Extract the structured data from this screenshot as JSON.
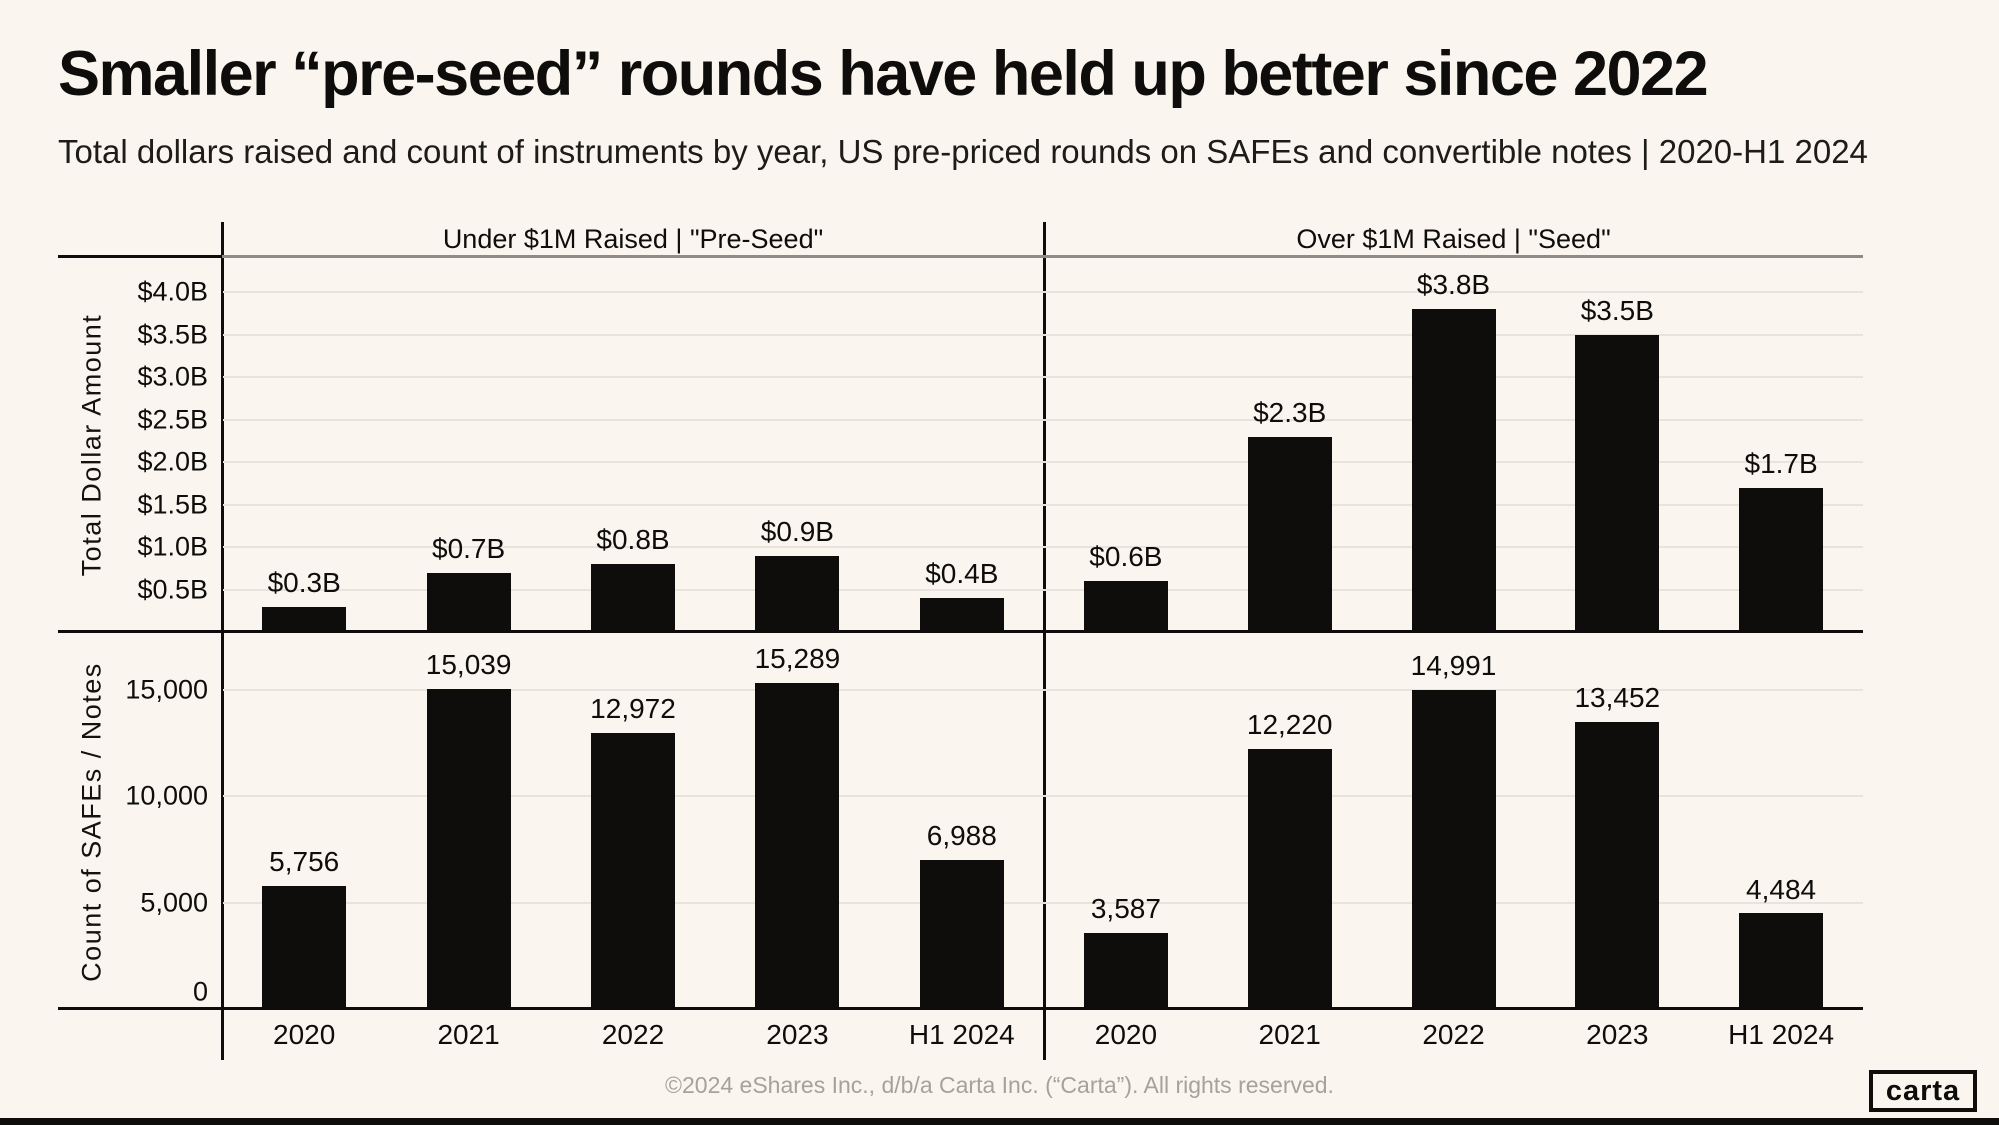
{
  "page": {
    "title": "Smaller “pre-seed” rounds have held up better since 2022",
    "subtitle": "Total dollars raised and count of instruments by year, US pre-priced rounds on SAFEs and convertible notes | 2020-H1 2024",
    "footer": "©2024 eShares Inc., d/b/a Carta Inc. (“Carta”). All rights reserved.",
    "logo_text": "carta"
  },
  "colors": {
    "background": "#faf6ef",
    "ink": "#0e0d0b",
    "bar": "#0e0d0b",
    "gridline": "#e8e4dd",
    "header_rule": "#8e8c87",
    "footer_text": "#a6a29b"
  },
  "chart_data": {
    "type": "bar",
    "title": "Smaller “pre-seed” rounds have held up better since 2022",
    "subtitle": "Total dollars raised and count of instruments by year, US pre-priced rounds on SAFEs and convertible notes | 2020-H1 2024",
    "categories": [
      "2020",
      "2021",
      "2022",
      "2023",
      "H1 2024"
    ],
    "legend_position": "none",
    "grid": "horizontal",
    "col_groups": [
      {
        "label": "Under $1M Raised | \"Pre-Seed\""
      },
      {
        "label": "Over $1M Raised | \"Seed\""
      }
    ],
    "rows": [
      {
        "ylabel": "Total Dollar Amount",
        "unit": "USD billions",
        "ylim": [
          0,
          4.4
        ],
        "yticks": [
          {
            "label": "$0.5B",
            "value": 0.5
          },
          {
            "label": "$1.0B",
            "value": 1.0
          },
          {
            "label": "$1.5B",
            "value": 1.5
          },
          {
            "label": "$2.0B",
            "value": 2.0
          },
          {
            "label": "$2.5B",
            "value": 2.5
          },
          {
            "label": "$3.0B",
            "value": 3.0
          },
          {
            "label": "$3.5B",
            "value": 3.5
          },
          {
            "label": "$4.0B",
            "value": 4.0
          }
        ],
        "series": [
          {
            "name": "Under $1M Raised | \"Pre-Seed\"",
            "values": [
              0.3,
              0.7,
              0.8,
              0.9,
              0.4
            ],
            "value_labels": [
              "$0.3B",
              "$0.7B",
              "$0.8B",
              "$0.9B",
              "$0.4B"
            ]
          },
          {
            "name": "Over $1M Raised | \"Seed\"",
            "values": [
              0.6,
              2.3,
              3.8,
              3.5,
              1.7
            ],
            "value_labels": [
              "$0.6B",
              "$2.3B",
              "$3.8B",
              "$3.5B",
              "$1.7B"
            ]
          }
        ]
      },
      {
        "ylabel": "Count of SAFEs / Notes",
        "unit": "instruments",
        "ylim": [
          0,
          17700
        ],
        "yticks": [
          {
            "label": "0",
            "value": 0
          },
          {
            "label": "5,000",
            "value": 5000
          },
          {
            "label": "10,000",
            "value": 10000
          },
          {
            "label": "15,000",
            "value": 15000
          }
        ],
        "series": [
          {
            "name": "Under $1M Raised | \"Pre-Seed\"",
            "values": [
              5756,
              15039,
              12972,
              15289,
              6988
            ],
            "value_labels": [
              "5,756",
              "15,039",
              "12,972",
              "15,289",
              "6,988"
            ]
          },
          {
            "name": "Over $1M Raised | \"Seed\"",
            "values": [
              3587,
              12220,
              14991,
              13452,
              4484
            ],
            "value_labels": [
              "3,587",
              "12,220",
              "14,991",
              "13,452",
              "4,484"
            ]
          }
        ]
      }
    ]
  }
}
